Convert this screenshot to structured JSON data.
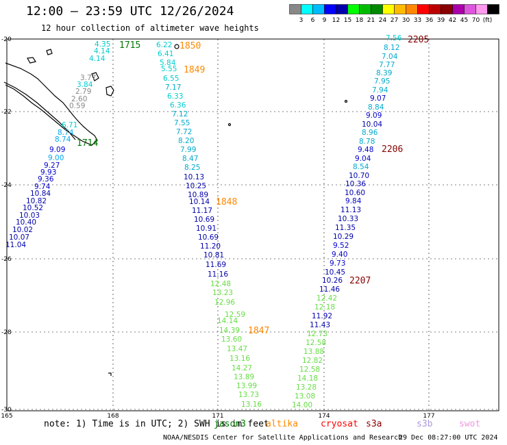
{
  "header": {
    "title": "12:00 — 23:59 UTC 12/26/2024",
    "subtitle": "12 hour collection of altimeter wave heights"
  },
  "colorbar": {
    "colors": [
      "#888888",
      "#00ffff",
      "#00bbff",
      "#0000ff",
      "#0000aa",
      "#00ff00",
      "#00bb00",
      "#008800",
      "#ffff00",
      "#ffbb00",
      "#ff8800",
      "#ff0000",
      "#bb0000",
      "#880000",
      "#aa00aa",
      "#dd55dd",
      "#ff99ee",
      "#000000"
    ],
    "labels": [
      "3",
      "6",
      "9",
      "12",
      "15",
      "18",
      "21",
      "24",
      "27",
      "30",
      "33",
      "36",
      "39",
      "42",
      "45",
      "70",
      "(ft)"
    ]
  },
  "axes": {
    "lon_labels": [
      "165",
      "168",
      "171",
      "174",
      "177"
    ],
    "lat_labels": [
      "-20",
      "-22",
      "-24",
      "-26",
      "-28",
      "-30"
    ]
  },
  "tracks": [
    {
      "points": [
        [
          "4.35",
          "#00cccc"
        ],
        [
          "4.14",
          "#00cccc"
        ],
        [
          "4.14",
          "#00cccc"
        ],
        [
          "3.77",
          "#888888"
        ],
        [
          "3.84",
          "#00cccc"
        ],
        [
          "2.79",
          "#888888"
        ],
        [
          "2.60",
          "#888888"
        ],
        [
          "0.59",
          "#888888"
        ],
        [
          "6.71",
          "#00cccc"
        ],
        [
          "8.74",
          "#00aaee"
        ],
        [
          "8.74",
          "#00aaee"
        ],
        [
          "9.09",
          "#0000cc"
        ],
        [
          "9.00",
          "#00aaee"
        ],
        [
          "9.27",
          "#0000cc"
        ],
        [
          "9.93",
          "#0000cc"
        ],
        [
          "9.36",
          "#0000cc"
        ],
        [
          "9.74",
          "#0000cc"
        ],
        [
          "10.84",
          "#0000aa"
        ],
        [
          "10.82",
          "#0000aa"
        ],
        [
          "10.52",
          "#0000aa"
        ],
        [
          "10.03",
          "#0000aa"
        ],
        [
          "10.40",
          "#0000aa"
        ],
        [
          "10.02",
          "#0000aa"
        ],
        [
          "10.07",
          "#0000aa"
        ],
        [
          "11.04",
          "#0000aa"
        ]
      ]
    },
    {
      "points": [
        [
          "6.22",
          "#00cccc"
        ],
        [
          "6.41",
          "#00cccc"
        ],
        [
          "5.84",
          "#00cccc"
        ],
        [
          "5.55",
          "#00cccc"
        ],
        [
          "6.55",
          "#00cccc"
        ],
        [
          "7.17",
          "#00aacc"
        ],
        [
          "6.33",
          "#00cccc"
        ],
        [
          "6.36",
          "#00cccc"
        ],
        [
          "7.12",
          "#00aacc"
        ],
        [
          "7.55",
          "#00aacc"
        ],
        [
          "7.72",
          "#00aacc"
        ],
        [
          "8.20",
          "#00aacc"
        ],
        [
          "7.99",
          "#00aacc"
        ],
        [
          "8.47",
          "#00aacc"
        ],
        [
          "8.25",
          "#00aacc"
        ],
        [
          "10.13",
          "#0000aa"
        ],
        [
          "10.25",
          "#0000aa"
        ],
        [
          "10.89",
          "#0000aa"
        ],
        [
          "10.14",
          "#0000aa"
        ],
        [
          "11.17",
          "#0000aa"
        ],
        [
          "10.69",
          "#0000aa"
        ],
        [
          "10.91",
          "#0000aa"
        ],
        [
          "10.69",
          "#0000aa"
        ],
        [
          "11.20",
          "#0000aa"
        ],
        [
          "10.81",
          "#0000aa"
        ],
        [
          "11.69",
          "#0000aa"
        ],
        [
          "11.16",
          "#0000aa"
        ],
        [
          "12.48",
          "#66dd44"
        ],
        [
          "13.23",
          "#66dd44"
        ],
        [
          "12.96",
          "#66dd44"
        ],
        [
          "14.14",
          "#66dd44"
        ],
        [
          "14.39",
          "#66dd44"
        ],
        [
          "13.60",
          "#66dd44"
        ],
        [
          "12.59",
          "#66dd44"
        ],
        [
          "13.47",
          "#66dd44"
        ],
        [
          "13.16",
          "#66dd44"
        ],
        [
          "14.27",
          "#66dd44"
        ],
        [
          "13.89",
          "#66dd44"
        ],
        [
          "13.99",
          "#66dd44"
        ],
        [
          "13.73",
          "#66dd44"
        ],
        [
          "13.16",
          "#66dd44"
        ]
      ]
    },
    {
      "points": [
        [
          "7.56",
          "#00cccc"
        ],
        [
          "8.12",
          "#00aacc"
        ],
        [
          "7.04",
          "#00aacc"
        ],
        [
          "7.77",
          "#00aacc"
        ],
        [
          "8.39",
          "#00aacc"
        ],
        [
          "7.95",
          "#00aacc"
        ],
        [
          "7.94",
          "#00aacc"
        ],
        [
          "9.07",
          "#0000cc"
        ],
        [
          "8.84",
          "#00aacc"
        ],
        [
          "9.09",
          "#0000cc"
        ],
        [
          "10.04",
          "#0000aa"
        ],
        [
          "8.96",
          "#00aacc"
        ],
        [
          "8.78",
          "#00aacc"
        ],
        [
          "9.48",
          "#0000cc"
        ],
        [
          "9.04",
          "#0000cc"
        ],
        [
          "8.54",
          "#00aacc"
        ],
        [
          "10.70",
          "#0000aa"
        ],
        [
          "10.36",
          "#0000aa"
        ],
        [
          "10.60",
          "#0000aa"
        ],
        [
          "9.84",
          "#0000cc"
        ],
        [
          "11.13",
          "#0000aa"
        ],
        [
          "10.33",
          "#0000aa"
        ],
        [
          "11.35",
          "#0000aa"
        ],
        [
          "10.29",
          "#0000aa"
        ],
        [
          "9.52",
          "#0000cc"
        ],
        [
          "9.40",
          "#0000cc"
        ],
        [
          "9.73",
          "#0000cc"
        ],
        [
          "10.45",
          "#0000aa"
        ],
        [
          "10.26",
          "#0000aa"
        ],
        [
          "11.46",
          "#0000aa"
        ],
        [
          "12.42",
          "#66dd44"
        ],
        [
          "12.18",
          "#66dd44"
        ],
        [
          "11.92",
          "#0000aa"
        ],
        [
          "11.43",
          "#0000aa"
        ],
        [
          "12.73",
          "#66dd44"
        ],
        [
          "12.58",
          "#66dd44"
        ],
        [
          "13.88",
          "#66dd44"
        ],
        [
          "12.82",
          "#66dd44"
        ],
        [
          "12.58",
          "#66dd44"
        ],
        [
          "14.18",
          "#66dd44"
        ],
        [
          "13.28",
          "#66dd44"
        ],
        [
          "13.08",
          "#66dd44"
        ],
        [
          "14.00",
          "#66dd44"
        ]
      ]
    }
  ],
  "time_labels": [
    {
      "text": "1715",
      "color": "#007700"
    },
    {
      "text": "1714",
      "color": "#007700"
    },
    {
      "text": "1850",
      "color": "#ff8800"
    },
    {
      "text": "1849",
      "color": "#ff8800"
    },
    {
      "text": "1848",
      "color": "#ff8800"
    },
    {
      "text": "1847",
      "color": "#ff8800"
    },
    {
      "text": "2205",
      "color": "#880000"
    },
    {
      "text": "2206",
      "color": "#880000"
    },
    {
      "text": "2207",
      "color": "#880000"
    }
  ],
  "footer": {
    "note": "note: 1) Time is in UTC; 2) SWH is in feet",
    "satellites": [
      {
        "name": "jason3",
        "color": "#007700"
      },
      {
        "name": "altika",
        "color": "#ff8800"
      },
      {
        "name": "cryosat",
        "color": "#ff0000"
      },
      {
        "name": "s3a",
        "color": "#880000"
      },
      {
        "name": "s3b",
        "color": "#aa99dd"
      },
      {
        "name": "swot",
        "color": "#ee99dd"
      }
    ],
    "credit": "NOAA/NESDIS Center for Satellite Applications and Research",
    "timestamp": "29 Dec 08:27:00 UTC 2024"
  }
}
